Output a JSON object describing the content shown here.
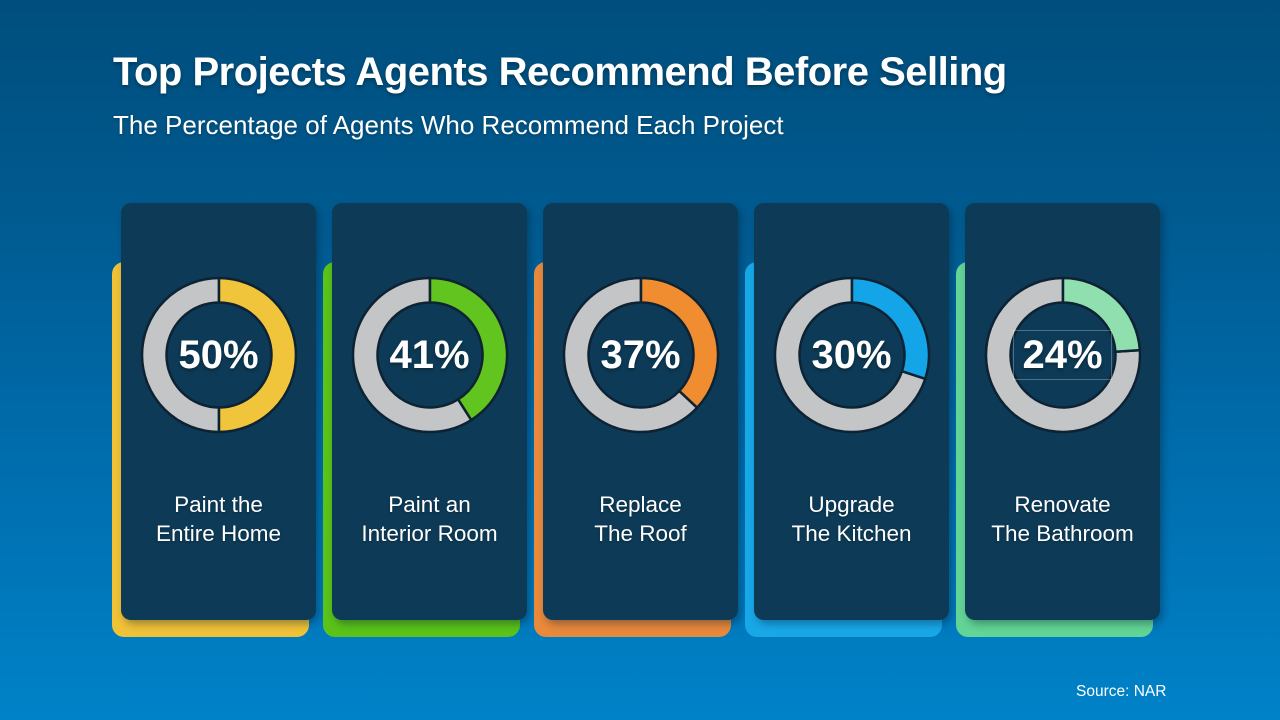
{
  "title": "Top Projects Agents Recommend Before Selling",
  "subtitle": "The Percentage of Agents Who Recommend Each Project",
  "source": "Source: NAR",
  "theme": {
    "background_top": "#004e7d",
    "background_mid": "#0068a6",
    "background_bottom": "#0082c8",
    "card_color": "#0d3a56",
    "ring_remainder_color": "#c3c5c7",
    "ring_outline_color": "#0d2233",
    "text_color": "#ffffff"
  },
  "cards": [
    {
      "percent": 50,
      "percent_label": "50%",
      "label_line1": "Paint the",
      "label_line2": "Entire Home",
      "accent_color": "#f0c238",
      "ring_color": "#f0c53c",
      "percent_boxed": false
    },
    {
      "percent": 41,
      "percent_label": "41%",
      "label_line1": "Paint an",
      "label_line2": "Interior Room",
      "accent_color": "#5ac219",
      "ring_color": "#62c41e",
      "percent_boxed": false
    },
    {
      "percent": 37,
      "percent_label": "37%",
      "label_line1": "Replace",
      "label_line2": "The Roof",
      "accent_color": "#e8893c",
      "ring_color": "#ef8d30",
      "percent_boxed": false
    },
    {
      "percent": 30,
      "percent_label": "30%",
      "label_line1": "Upgrade",
      "label_line2": "The Kitchen",
      "accent_color": "#18a8e8",
      "ring_color": "#14a5e8",
      "percent_boxed": false
    },
    {
      "percent": 24,
      "percent_label": "24%",
      "label_line1": "Renovate",
      "label_line2": "The Bathroom",
      "accent_color": "#62d495",
      "ring_color": "#90dfae",
      "percent_boxed": true
    }
  ],
  "chart_data": {
    "type": "pie",
    "variant": "multi-donut",
    "title": "Top Projects Agents Recommend Before Selling",
    "subtitle": "The Percentage of Agents Who Recommend Each Project",
    "source": "Source: NAR",
    "categories": [
      "Paint the Entire Home",
      "Paint an Interior Room",
      "Replace The Roof",
      "Upgrade The Kitchen",
      "Renovate The Bathroom"
    ],
    "values": [
      50,
      41,
      37,
      30,
      24
    ],
    "unit": "%",
    "segment_colors": [
      "#f0c53c",
      "#62c41e",
      "#ef8d30",
      "#14a5e8",
      "#90dfae"
    ],
    "remainder_color": "#c3c5c7",
    "segment_start": "12-oclock-clockwise",
    "legend": false,
    "grid": false
  }
}
